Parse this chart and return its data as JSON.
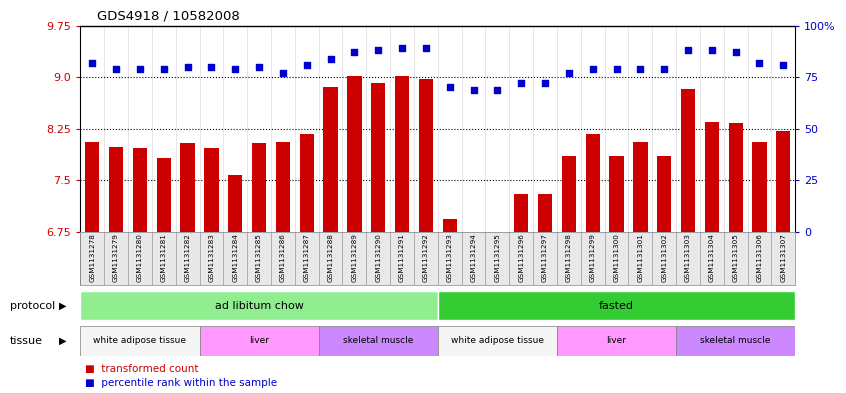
{
  "title": "GDS4918 / 10582008",
  "samples": [
    "GSM1131278",
    "GSM1131279",
    "GSM1131280",
    "GSM1131281",
    "GSM1131282",
    "GSM1131283",
    "GSM1131284",
    "GSM1131285",
    "GSM1131286",
    "GSM1131287",
    "GSM1131288",
    "GSM1131289",
    "GSM1131290",
    "GSM1131291",
    "GSM1131292",
    "GSM1131293",
    "GSM1131294",
    "GSM1131295",
    "GSM1131296",
    "GSM1131297",
    "GSM1131298",
    "GSM1131299",
    "GSM1131300",
    "GSM1131301",
    "GSM1131302",
    "GSM1131303",
    "GSM1131304",
    "GSM1131305",
    "GSM1131306",
    "GSM1131307"
  ],
  "bar_values": [
    8.05,
    7.98,
    7.97,
    7.82,
    8.04,
    7.97,
    7.57,
    8.04,
    8.05,
    8.18,
    8.85,
    9.02,
    8.92,
    9.02,
    8.97,
    6.93,
    6.73,
    6.72,
    7.3,
    7.3,
    7.85,
    8.18,
    7.85,
    8.05,
    7.85,
    8.83,
    8.35,
    8.33,
    8.05,
    8.22
  ],
  "dot_values_pct": [
    82,
    79,
    79,
    79,
    80,
    80,
    79,
    80,
    77,
    81,
    84,
    87,
    88,
    89,
    89,
    70,
    69,
    69,
    72,
    72,
    77,
    79,
    79,
    79,
    79,
    88,
    88,
    87,
    82,
    81
  ],
  "ylim_left": [
    6.75,
    9.75
  ],
  "ylim_right": [
    0,
    100
  ],
  "yticks_left": [
    6.75,
    7.5,
    8.25,
    9.0,
    9.75
  ],
  "yticks_right": [
    0,
    25,
    50,
    75,
    100
  ],
  "bar_color": "#cc0000",
  "dot_color": "#0000cc",
  "background_color": "#ffffff",
  "protocol_groups": [
    {
      "label": "ad libitum chow",
      "start": 0,
      "end": 14,
      "color": "#90ee90"
    },
    {
      "label": "fasted",
      "start": 15,
      "end": 29,
      "color": "#33cc33"
    }
  ],
  "tissue_groups": [
    {
      "label": "white adipose tissue",
      "start": 0,
      "end": 4,
      "color": "#f5f5f5"
    },
    {
      "label": "liver",
      "start": 5,
      "end": 9,
      "color": "#ff99ff"
    },
    {
      "label": "skeletal muscle",
      "start": 10,
      "end": 14,
      "color": "#cc88ff"
    },
    {
      "label": "white adipose tissue",
      "start": 15,
      "end": 19,
      "color": "#f5f5f5"
    },
    {
      "label": "liver",
      "start": 20,
      "end": 24,
      "color": "#ff99ff"
    },
    {
      "label": "skeletal muscle",
      "start": 25,
      "end": 29,
      "color": "#cc88ff"
    }
  ],
  "legend_items": [
    {
      "label": "transformed count",
      "color": "#cc0000"
    },
    {
      "label": "percentile rank within the sample",
      "color": "#0000cc"
    }
  ]
}
